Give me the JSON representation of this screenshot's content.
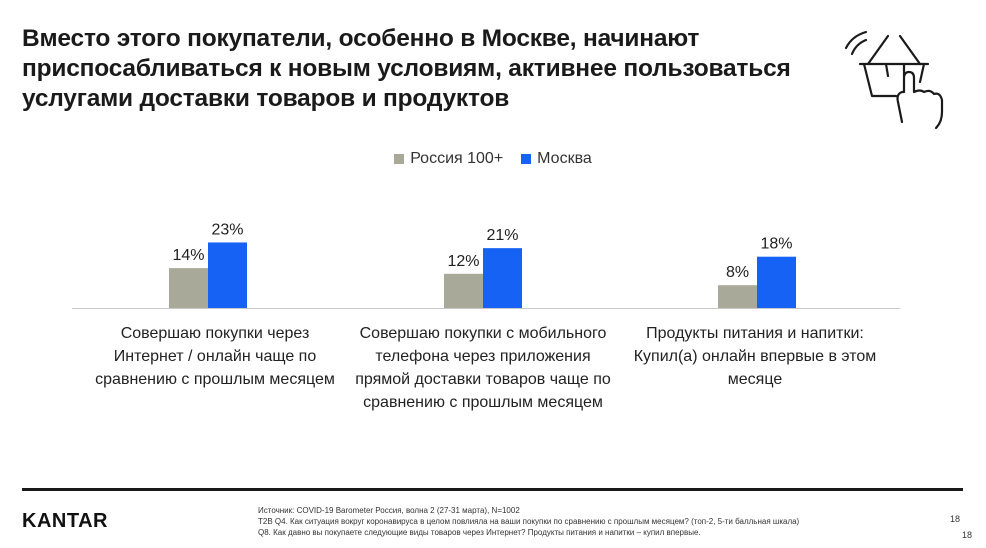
{
  "title_lines": [
    "Вместо этого покупатели, особенно в Москве, начинают",
    "приспосабливаться к новым условиям, активнее пользоваться",
    "услугами доставки товаров и продуктов"
  ],
  "colors": {
    "russia": "#a9a99a",
    "moscow": "#1562f5",
    "text": "#1a1a1a"
  },
  "icon": "shopping-basket-hand-pointer-icon",
  "chart_data": {
    "type": "bar",
    "categories": [
      "Совершаю покупки через Интернет / онлайн чаще по сравнению с прошлым месяцем",
      "Совершаю покупки с мобильного телефона через приложения прямой доставки товаров чаще по сравнению с прошлым месяцем",
      "Продукты питания и напитки: Купил(а) онлайн впервые в этом месяце"
    ],
    "category_lines": [
      [
        "Совершаю покупки через",
        "Интернет / онлайн чаще по",
        "сравнению с прошлым месяцем"
      ],
      [
        "Совершаю покупки с мобильного",
        "телефона через приложения",
        "прямой доставки товаров чаще по",
        "сравнению с прошлым месяцем"
      ],
      [
        "Продукты питания и напитки:",
        "Купил(а) онлайн впервые в этом",
        "месяце"
      ]
    ],
    "series": [
      {
        "name": "Россия 100+",
        "values": [
          14,
          12,
          8
        ],
        "labels": [
          "14%",
          "12%",
          "8%"
        ]
      },
      {
        "name": "Москва",
        "values": [
          23,
          21,
          18
        ],
        "labels": [
          "23%",
          "21%",
          "18%"
        ]
      }
    ],
    "unit": "%",
    "legend_position": "top-center",
    "grid": false
  },
  "footer": {
    "logo": "KANTAR",
    "source_lines": [
      "Источник: COVID-19 Barometer Россия, волна 2 (27-31 марта), N=1002",
      "T2B Q4. Как ситуация вокруг коронавируса в целом повлияла на ваши покупки по сравнению с прошлым месяцем? (топ-2, 5-ти балльная шкала)",
      "Q8. Как давно вы покупаете следующие виды товаров через Интернет? Продукты питания и напитки – купил впервые."
    ],
    "page_number": "18",
    "page_number_2": "18"
  }
}
